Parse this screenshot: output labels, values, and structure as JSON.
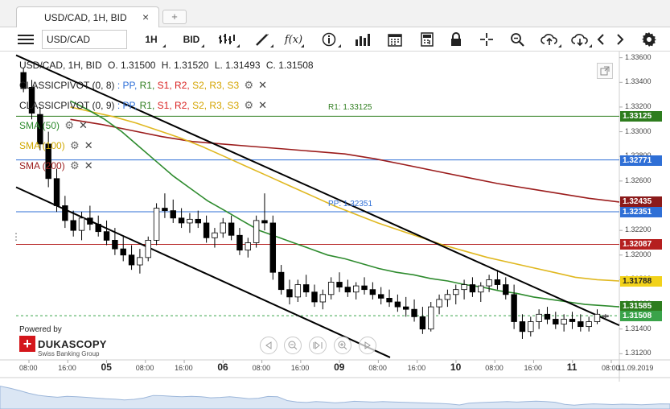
{
  "tab": {
    "title": "USD/CAD, 1H, BID",
    "close": "×",
    "add": "+"
  },
  "toolbar": {
    "instrument": "USD/CAD",
    "period": "1H",
    "side": "BID",
    "icons": [
      "menu-icon",
      "bar-style-icon",
      "draw-line-icon",
      "indicator-fx-icon",
      "info-icon",
      "volume-icon",
      "calendar-icon",
      "calculator-icon",
      "lock-icon",
      "crosshair-icon",
      "zoom-icon",
      "cloud-upload-icon",
      "cloud-download-icon",
      "chevron-left-icon",
      "chevron-right-icon",
      "gear-icon"
    ],
    "fx_label": "f(x)"
  },
  "ohlc": {
    "symbol": "USD/CAD, 1H, BID",
    "o": "O. 1.31500",
    "h": "H. 1.31520",
    "l": "L. 1.31493",
    "c": "C. 1.31508"
  },
  "overlays": {
    "pivot1": {
      "name": "CLASSICPIVOT (0, 8)",
      "levels": [
        ": PP,",
        "R1,",
        "S1,",
        "R2,",
        "S2,",
        "R3,",
        "S3"
      ]
    },
    "pivot2": {
      "name": "CLASSICPIVOT (0, 9)",
      "levels": [
        ": PP,",
        "R1,",
        "S1,",
        "R2,",
        "S2,",
        "R3,",
        "S3"
      ]
    },
    "sma50": "SMA (50)",
    "sma100": "SMA (100)",
    "sma200": "SMA (200)"
  },
  "annotations": {
    "r1": "R1: 1.33125",
    "pp": "PP: 1.32351"
  },
  "price_tags": [
    {
      "value": "1.33125",
      "color": "#2e7d1e",
      "text_color": "#ffffff"
    },
    {
      "value": "1.32771",
      "color": "#2f6fd6",
      "text_color": "#ffffff"
    },
    {
      "value": "1.32435",
      "color": "#8b1a1a",
      "text_color": "#ffffff"
    },
    {
      "value": "1.32351",
      "color": "#2f6fd6",
      "text_color": "#ffffff"
    },
    {
      "value": "1.32087",
      "color": "#b51f1f",
      "text_color": "#ffffff"
    },
    {
      "value": "1.31788",
      "color": "#f2d21a",
      "text_color": "#222222"
    },
    {
      "value": "1.31585",
      "color": "#2e7d1e",
      "text_color": "#ffffff"
    },
    {
      "value": "1.31508",
      "color": "#3aa34a",
      "text_color": "#ffffff"
    }
  ],
  "y_axis_labels": [
    "1.33600",
    "1.33400",
    "1.33200",
    "1.33000",
    "1.32800",
    "1.32600",
    "1.32400",
    "1.32200",
    "1.32000",
    "1.31800",
    "1.31600",
    "1.31400",
    "1.31200"
  ],
  "x_axis_labels": [
    {
      "text": "08:00",
      "bold": false
    },
    {
      "text": "16:00",
      "bold": false
    },
    {
      "text": "05",
      "bold": true
    },
    {
      "text": "08:00",
      "bold": false
    },
    {
      "text": "16:00",
      "bold": false
    },
    {
      "text": "06",
      "bold": true
    },
    {
      "text": "08:00",
      "bold": false
    },
    {
      "text": "16:00",
      "bold": false
    },
    {
      "text": "09",
      "bold": true
    },
    {
      "text": "08:00",
      "bold": false
    },
    {
      "text": "16:00",
      "bold": false
    },
    {
      "text": "10",
      "bold": true
    },
    {
      "text": "08:00",
      "bold": false
    },
    {
      "text": "16:00",
      "bold": false
    },
    {
      "text": "11",
      "bold": true
    },
    {
      "text": "08:00",
      "bold": false
    }
  ],
  "x_axis_date": "11.09.2019",
  "branding": {
    "powered": "Powered by",
    "name": "DUKASCOPY",
    "sub": "Swiss Banking Group"
  },
  "colors": {
    "candle_up": "#ffffff",
    "candle_down": "#000000",
    "sma50": "#2e8b2e",
    "sma100": "#e0b820",
    "sma200": "#9b1c1c",
    "channel": "#000000",
    "pivot_blue": "#2f6fd6",
    "pivot_green": "#2e7d1e",
    "pivot_red": "#b51f1f"
  },
  "chart_data": {
    "type": "candlestick",
    "symbol": "USD/CAD",
    "timeframe": "1H",
    "ylim": [
      1.3115,
      1.3365
    ],
    "candles": [
      [
        1.3348,
        1.3352,
        1.3332,
        1.3335
      ],
      [
        1.3336,
        1.3342,
        1.331,
        1.3315
      ],
      [
        1.3314,
        1.332,
        1.3285,
        1.329
      ],
      [
        1.329,
        1.33,
        1.3255,
        1.3262
      ],
      [
        1.3262,
        1.327,
        1.3235,
        1.324
      ],
      [
        1.324,
        1.3248,
        1.3222,
        1.3228
      ],
      [
        1.3228,
        1.3236,
        1.3215,
        1.322
      ],
      [
        1.322,
        1.3235,
        1.3212,
        1.323
      ],
      [
        1.323,
        1.324,
        1.322,
        1.3225
      ],
      [
        1.3225,
        1.3232,
        1.3215,
        1.3219
      ],
      [
        1.3219,
        1.3228,
        1.3208,
        1.3212
      ],
      [
        1.3212,
        1.3222,
        1.32,
        1.3205
      ],
      [
        1.3205,
        1.3215,
        1.3195,
        1.32
      ],
      [
        1.32,
        1.3208,
        1.3188,
        1.3192
      ],
      [
        1.3192,
        1.3205,
        1.3185,
        1.3198
      ],
      [
        1.3198,
        1.3215,
        1.3195,
        1.3212
      ],
      [
        1.3212,
        1.3242,
        1.3208,
        1.3238
      ],
      [
        1.3238,
        1.325,
        1.323,
        1.3236
      ],
      [
        1.3236,
        1.3245,
        1.3226,
        1.323
      ],
      [
        1.323,
        1.3238,
        1.3222,
        1.3226
      ],
      [
        1.3226,
        1.3234,
        1.3218,
        1.3229
      ],
      [
        1.3229,
        1.3236,
        1.3222,
        1.3226
      ],
      [
        1.3226,
        1.3232,
        1.321,
        1.3214
      ],
      [
        1.3214,
        1.3222,
        1.3206,
        1.3218
      ],
      [
        1.3218,
        1.323,
        1.3214,
        1.3226
      ],
      [
        1.3226,
        1.3232,
        1.3212,
        1.3216
      ],
      [
        1.3216,
        1.3222,
        1.32,
        1.3204
      ],
      [
        1.3204,
        1.3214,
        1.3198,
        1.321
      ],
      [
        1.321,
        1.3232,
        1.3206,
        1.3228
      ],
      [
        1.3228,
        1.325,
        1.322,
        1.3226
      ],
      [
        1.3226,
        1.3232,
        1.318,
        1.3186
      ],
      [
        1.3186,
        1.3192,
        1.3168,
        1.3172
      ],
      [
        1.3172,
        1.318,
        1.316,
        1.3166
      ],
      [
        1.3166,
        1.318,
        1.3162,
        1.3176
      ],
      [
        1.3176,
        1.3184,
        1.3166,
        1.317
      ],
      [
        1.317,
        1.3176,
        1.3158,
        1.3162
      ],
      [
        1.3162,
        1.3172,
        1.3156,
        1.3168
      ],
      [
        1.3168,
        1.3182,
        1.3164,
        1.3178
      ],
      [
        1.3178,
        1.3186,
        1.317,
        1.3174
      ],
      [
        1.3174,
        1.318,
        1.3166,
        1.317
      ],
      [
        1.317,
        1.3178,
        1.3164,
        1.3175
      ],
      [
        1.3175,
        1.3182,
        1.3168,
        1.3172
      ],
      [
        1.3172,
        1.3178,
        1.3164,
        1.3168
      ],
      [
        1.3168,
        1.3174,
        1.316,
        1.3165
      ],
      [
        1.3165,
        1.3172,
        1.3158,
        1.3162
      ],
      [
        1.3162,
        1.3168,
        1.3154,
        1.3158
      ],
      [
        1.3158,
        1.3166,
        1.315,
        1.3156
      ],
      [
        1.3156,
        1.3164,
        1.3146,
        1.315
      ],
      [
        1.315,
        1.3158,
        1.3136,
        1.314
      ],
      [
        1.314,
        1.3162,
        1.3138,
        1.3158
      ],
      [
        1.3158,
        1.3168,
        1.3152,
        1.3164
      ],
      [
        1.3164,
        1.3172,
        1.3158,
        1.3168
      ],
      [
        1.3168,
        1.3176,
        1.316,
        1.3172
      ],
      [
        1.3172,
        1.318,
        1.3164,
        1.3176
      ],
      [
        1.3176,
        1.3182,
        1.3166,
        1.317
      ],
      [
        1.317,
        1.3178,
        1.3162,
        1.3175
      ],
      [
        1.3175,
        1.3184,
        1.317,
        1.318
      ],
      [
        1.318,
        1.3188,
        1.3172,
        1.3176
      ],
      [
        1.3176,
        1.3182,
        1.3164,
        1.3168
      ],
      [
        1.3168,
        1.3176,
        1.314,
        1.3146
      ],
      [
        1.3146,
        1.3152,
        1.3132,
        1.3138
      ],
      [
        1.3138,
        1.315,
        1.3134,
        1.3146
      ],
      [
        1.3146,
        1.3156,
        1.314,
        1.3152
      ],
      [
        1.3152,
        1.3158,
        1.3144,
        1.3148
      ],
      [
        1.3148,
        1.3154,
        1.314,
        1.3144
      ],
      [
        1.3144,
        1.3152,
        1.3138,
        1.3148
      ],
      [
        1.3148,
        1.3154,
        1.314,
        1.3146
      ],
      [
        1.3146,
        1.3152,
        1.3138,
        1.3142
      ],
      [
        1.3142,
        1.315,
        1.3138,
        1.3146
      ],
      [
        1.3146,
        1.3156,
        1.3144,
        1.3152
      ],
      [
        1.315,
        1.3152,
        1.3149,
        1.3151
      ]
    ],
    "sma50": [
      1.3325,
      1.3318,
      1.331,
      1.33,
      1.3288,
      1.3276,
      1.3264,
      1.3254,
      1.3244,
      1.3236,
      1.3228,
      1.322,
      1.3215,
      1.321,
      1.3205,
      1.32,
      1.3197,
      1.3193,
      1.3189,
      1.3186,
      1.3184,
      1.3181,
      1.3179,
      1.3176,
      1.3174,
      1.3171,
      1.3169,
      1.3166,
      1.3164,
      1.3162,
      1.316,
      1.3159,
      1.3158
    ],
    "sma100": [
      1.332,
      1.3316,
      1.3312,
      1.3307,
      1.3301,
      1.3295,
      1.3288,
      1.328,
      1.3272,
      1.3264,
      1.3256,
      1.3248,
      1.324,
      1.3233,
      1.3226,
      1.322,
      1.3214,
      1.3208,
      1.3203,
      1.3198,
      1.3194,
      1.319,
      1.3186,
      1.3182,
      1.318,
      1.3179
    ],
    "sma200": [
      1.331,
      1.3306,
      1.3301,
      1.3296,
      1.3292,
      1.329,
      1.3288,
      1.3286,
      1.3284,
      1.3282,
      1.3278,
      1.3273,
      1.3268,
      1.3263,
      1.3258,
      1.3254,
      1.325,
      1.3246,
      1.3243
    ],
    "horizontal_levels": [
      {
        "value": 1.33125,
        "kind": "R1"
      },
      {
        "value": 1.32771,
        "kind": "pivot-blue"
      },
      {
        "value": 1.32351,
        "kind": "PP"
      },
      {
        "value": 1.32087,
        "kind": "pivot-red"
      },
      {
        "value": 1.31508,
        "kind": "last"
      }
    ],
    "channel_lines": [
      {
        "from": [
          0,
          1.3362
        ],
        "to": [
          1,
          1.3143
        ]
      },
      {
        "from": [
          0,
          1.3255
        ],
        "to": [
          0.62,
          1.3117
        ]
      }
    ]
  }
}
